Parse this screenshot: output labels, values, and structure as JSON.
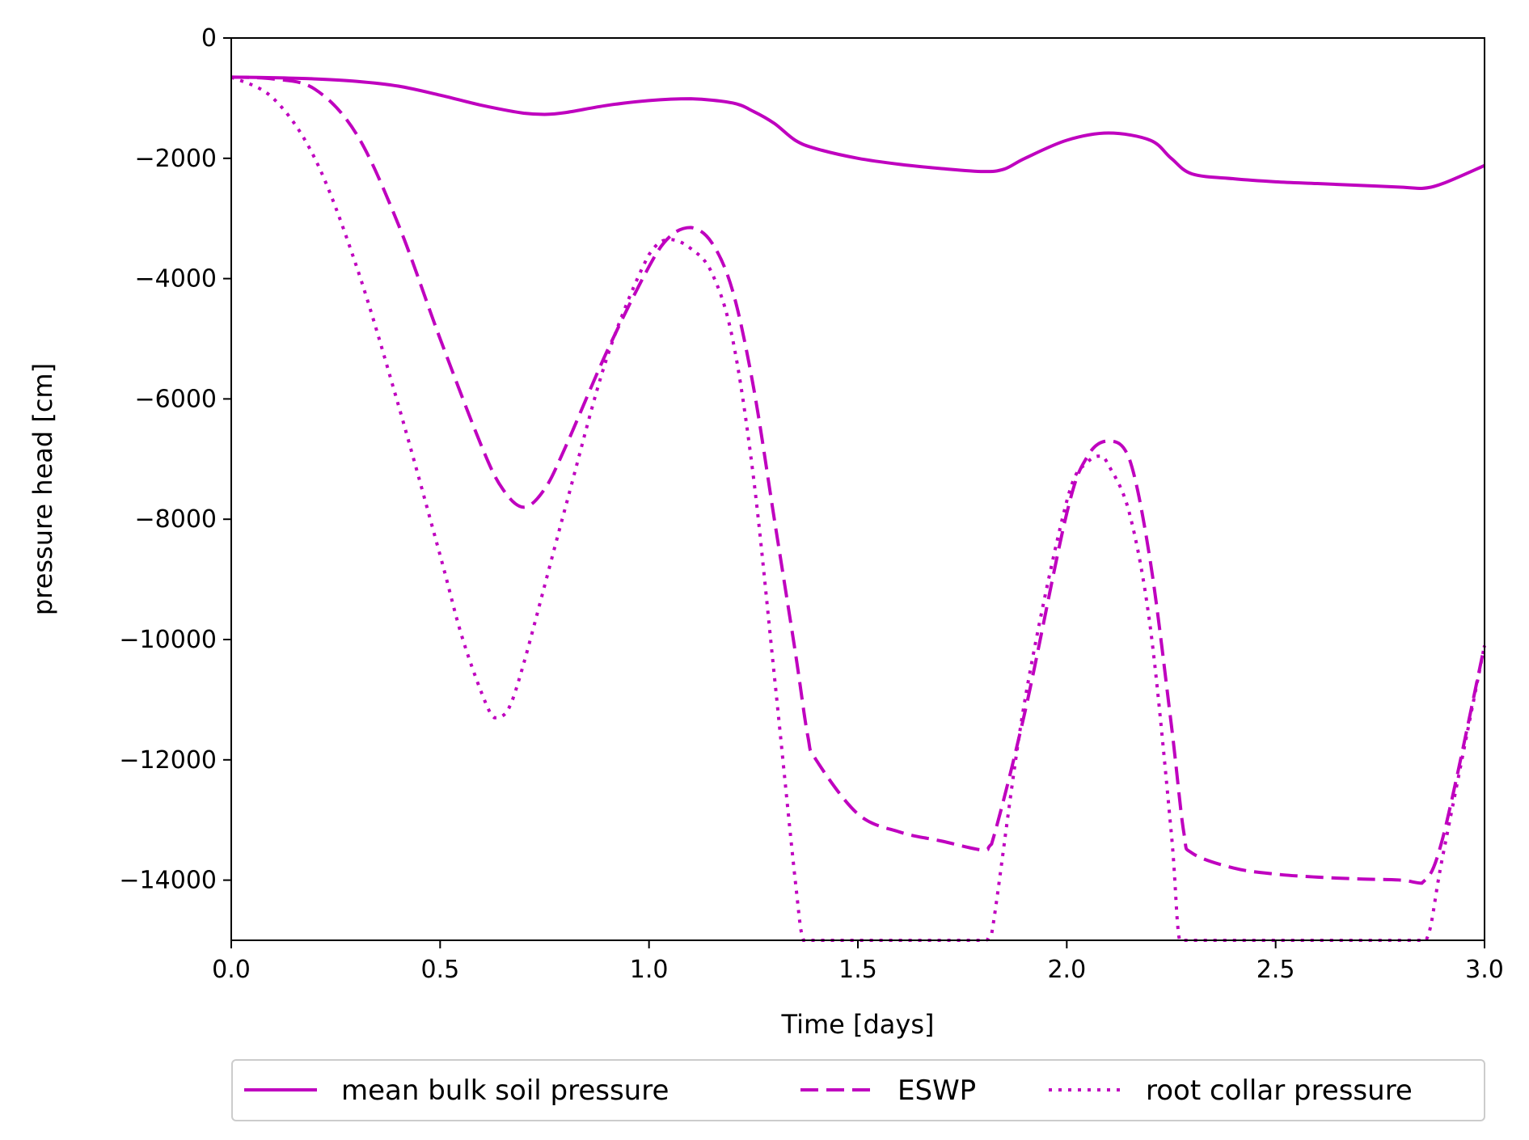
{
  "chart_data": {
    "type": "line",
    "title": "",
    "xlabel": "Time [days]",
    "ylabel": "pressure head [cm]",
    "xlim": [
      0,
      3
    ],
    "ylim": [
      -15000,
      0
    ],
    "xticks": [
      0.0,
      0.5,
      1.0,
      1.5,
      2.0,
      2.5,
      3.0
    ],
    "xtick_labels": [
      "0.0",
      "0.5",
      "1.0",
      "1.5",
      "2.0",
      "2.5",
      "3.0"
    ],
    "yticks": [
      0,
      -2000,
      -4000,
      -6000,
      -8000,
      -10000,
      -12000,
      -14000
    ],
    "ytick_labels": [
      "0",
      "−2000",
      "−4000",
      "−6000",
      "−8000",
      "−10000",
      "−12000",
      "−14000"
    ],
    "grid": false,
    "legend_position": "bottom-center",
    "color": "#bf00bf",
    "series": [
      {
        "name": "mean bulk soil pressure",
        "style": "solid",
        "x": [
          0,
          0.1,
          0.2,
          0.3,
          0.4,
          0.5,
          0.6,
          0.7,
          0.75,
          0.8,
          0.9,
          1.0,
          1.1,
          1.2,
          1.25,
          1.3,
          1.35,
          1.4,
          1.5,
          1.6,
          1.7,
          1.8,
          1.85,
          1.9,
          2.0,
          2.1,
          2.2,
          2.25,
          2.3,
          2.4,
          2.5,
          2.6,
          2.7,
          2.8,
          2.85,
          2.9,
          3.0
        ],
        "y": [
          -650,
          -660,
          -680,
          -720,
          -800,
          -950,
          -1120,
          -1250,
          -1270,
          -1240,
          -1120,
          -1040,
          -1010,
          -1080,
          -1220,
          -1420,
          -1700,
          -1840,
          -2000,
          -2100,
          -2170,
          -2220,
          -2180,
          -2000,
          -1700,
          -1580,
          -1700,
          -2000,
          -2260,
          -2340,
          -2390,
          -2420,
          -2450,
          -2480,
          -2500,
          -2420,
          -2120
        ]
      },
      {
        "name": "ESWP",
        "style": "dashed",
        "x": [
          0,
          0.1,
          0.2,
          0.3,
          0.4,
          0.5,
          0.6,
          0.65,
          0.7,
          0.75,
          0.8,
          0.9,
          1.0,
          1.05,
          1.1,
          1.15,
          1.2,
          1.25,
          1.3,
          1.35,
          1.38,
          1.4,
          1.5,
          1.6,
          1.7,
          1.8,
          1.82,
          1.9,
          2.0,
          2.05,
          2.1,
          2.15,
          2.2,
          2.25,
          2.28,
          2.3,
          2.4,
          2.5,
          2.6,
          2.7,
          2.8,
          2.85,
          2.9,
          3.0
        ],
        "y": [
          -650,
          -680,
          -850,
          -1600,
          -3100,
          -5000,
          -6800,
          -7500,
          -7800,
          -7500,
          -6800,
          -5200,
          -3800,
          -3300,
          -3150,
          -3400,
          -4200,
          -5800,
          -8000,
          -10200,
          -11600,
          -12000,
          -12900,
          -13200,
          -13350,
          -13500,
          -13400,
          -11200,
          -7900,
          -6950,
          -6700,
          -7000,
          -8700,
          -11400,
          -13200,
          -13550,
          -13800,
          -13900,
          -13950,
          -13980,
          -14000,
          -14050,
          -13300,
          -10100
        ]
      },
      {
        "name": "root collar pressure",
        "style": "dotted",
        "x": [
          0,
          0.1,
          0.2,
          0.3,
          0.4,
          0.5,
          0.55,
          0.6,
          0.63,
          0.66,
          0.7,
          0.8,
          0.9,
          1.0,
          1.05,
          1.1,
          1.15,
          1.2,
          1.25,
          1.3,
          1.35,
          1.37,
          1.4,
          1.5,
          1.6,
          1.7,
          1.8,
          1.82,
          1.9,
          2.0,
          2.05,
          2.08,
          2.1,
          2.15,
          2.2,
          2.25,
          2.27,
          2.3,
          2.4,
          2.5,
          2.6,
          2.7,
          2.8,
          2.86,
          2.9,
          3.0
        ],
        "y": [
          -650,
          -1000,
          -2000,
          -3800,
          -6100,
          -8600,
          -9900,
          -10900,
          -11300,
          -11200,
          -10400,
          -7800,
          -5300,
          -3600,
          -3350,
          -3500,
          -3900,
          -5000,
          -7300,
          -10600,
          -14000,
          -15000,
          -15000,
          -15000,
          -15000,
          -15000,
          -15000,
          -14900,
          -11000,
          -7700,
          -7050,
          -6950,
          -7100,
          -7900,
          -9800,
          -13200,
          -15000,
          -15000,
          -15000,
          -15000,
          -15000,
          -15000,
          -15000,
          -15000,
          -13600,
          -10100
        ]
      }
    ]
  }
}
